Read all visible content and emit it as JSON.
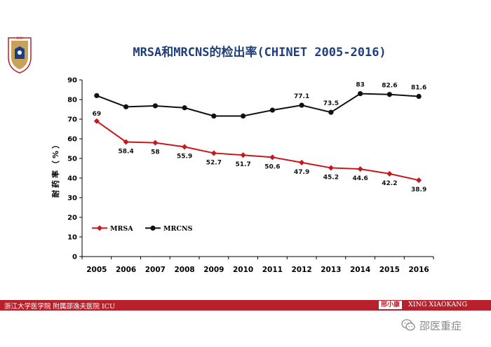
{
  "slide": {
    "title": "MRSA和MRCNS的检出率(CHINET 2005-2016)"
  },
  "footer": {
    "left_text": "浙江大学医学院 附属邵逸夫医院 ICU",
    "badge_text": "邢小康",
    "right_text": "XING XIAOKANG",
    "bar_color": "#b8202b"
  },
  "watermark": {
    "text": "邵医重症",
    "icon": "wechat-icon"
  },
  "logo": {
    "icon": "university-crest-icon"
  },
  "chart_data": {
    "type": "line",
    "categories": [
      "2005",
      "2006",
      "2007",
      "2008",
      "2009",
      "2010",
      "2011",
      "2012",
      "2013",
      "2014",
      "2015",
      "2016"
    ],
    "series": [
      {
        "name": "MRSA",
        "color": "#c8161d",
        "marker": "diamond",
        "values": [
          69,
          58.4,
          58,
          55.9,
          52.7,
          51.7,
          50.6,
          47.9,
          45.2,
          44.6,
          42.2,
          38.9
        ],
        "labels": [
          "69",
          "58.4",
          "58",
          "55.9",
          "52.7",
          "51.7",
          "50.6",
          "47.9",
          "45.2",
          "44.6",
          "42.2",
          "38.9"
        ]
      },
      {
        "name": "MRCNS",
        "color": "#111111",
        "marker": "circle",
        "values": [
          82,
          76.3,
          76.8,
          75.8,
          71.6,
          71.6,
          74.6,
          77.1,
          73.5,
          83,
          82.6,
          81.6
        ],
        "labels": [
          "",
          "",
          "",
          "",
          "",
          "",
          "",
          "77.1",
          "73.5",
          "83",
          "82.6",
          "81.6"
        ]
      }
    ],
    "ylabel": "耐药率（%）",
    "ylim": [
      0,
      90
    ],
    "yticks": [
      0,
      10,
      20,
      30,
      40,
      50,
      60,
      70,
      80,
      90
    ],
    "legend_position": "bottom-left",
    "grid": false
  }
}
